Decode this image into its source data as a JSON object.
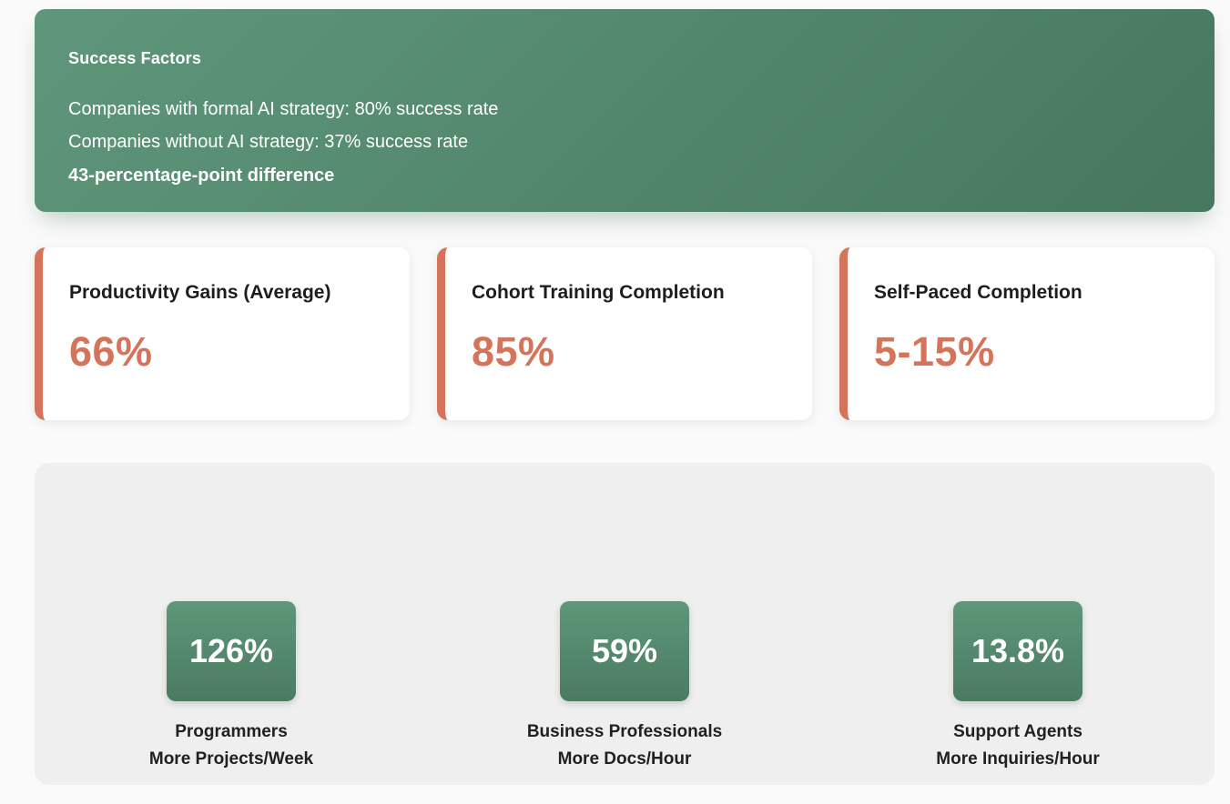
{
  "banner": {
    "title": "Success Factors",
    "line1": "Companies with formal AI strategy: 80% success rate",
    "line2": "Companies without AI strategy: 37% success rate",
    "highlight": "43-percentage-point difference"
  },
  "stat_cards": [
    {
      "label": "Productivity Gains (Average)",
      "value": "66%"
    },
    {
      "label": "Cohort Training Completion",
      "value": "85%"
    },
    {
      "label": "Self-Paced Completion",
      "value": "5-15%"
    }
  ],
  "metric_tiles": [
    {
      "value": "126%",
      "line1": "Programmers",
      "line2": "More Projects/Week"
    },
    {
      "value": "59%",
      "line1": "Business Professionals",
      "line2": "More Docs/Hour"
    },
    {
      "value": "13.8%",
      "line1": "Support Agents",
      "line2": "More Inquiries/Hour"
    }
  ],
  "colors": {
    "accent_orange": "#d4745a",
    "green_light": "#5f977b",
    "green_dark": "#46775d",
    "panel_gray": "#efefef",
    "page_background": "#fafafa",
    "text_dark": "#1d1d1d",
    "text_white": "#ffffff"
  }
}
